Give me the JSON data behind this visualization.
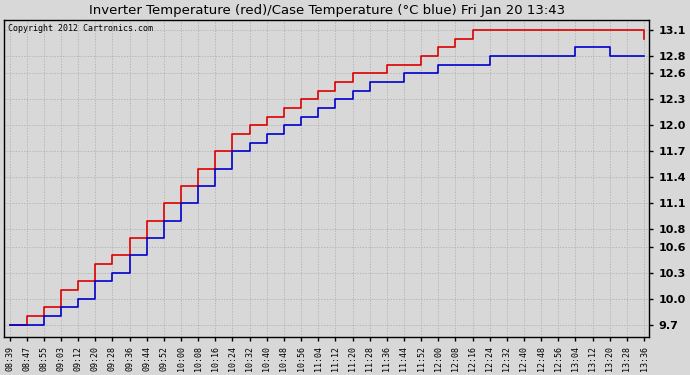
{
  "title": "Inverter Temperature (red)/Case Temperature (°C blue) Fri Jan 20 13:43",
  "copyright": "Copyright 2012 Cartronics.com",
  "background_color": "#d8d8d8",
  "plot_bg_color": "#d8d8d8",
  "red_color": "#dd0000",
  "blue_color": "#0000cc",
  "grid_color": "#aaaaaa",
  "yticks": [
    9.7,
    10.0,
    10.3,
    10.6,
    10.8,
    11.1,
    11.4,
    11.7,
    12.0,
    12.3,
    12.6,
    12.8,
    13.1
  ],
  "ymin": 9.56,
  "ymax": 13.22,
  "xtick_labels": [
    "08:39",
    "08:47",
    "08:55",
    "09:03",
    "09:12",
    "09:20",
    "09:28",
    "09:36",
    "09:44",
    "09:52",
    "10:00",
    "10:08",
    "10:16",
    "10:24",
    "10:32",
    "10:40",
    "10:48",
    "10:56",
    "11:04",
    "11:12",
    "11:20",
    "11:28",
    "11:36",
    "11:44",
    "11:52",
    "12:00",
    "12:08",
    "12:16",
    "12:24",
    "12:32",
    "12:40",
    "12:48",
    "12:56",
    "13:04",
    "13:12",
    "13:20",
    "13:28",
    "13:36"
  ],
  "red_y": [
    9.7,
    9.8,
    9.9,
    10.1,
    10.2,
    10.4,
    10.5,
    10.7,
    10.9,
    11.1,
    11.3,
    11.5,
    11.7,
    11.9,
    12.0,
    12.1,
    12.2,
    12.3,
    12.4,
    12.5,
    12.6,
    12.6,
    12.7,
    12.7,
    12.8,
    12.9,
    13.0,
    13.1,
    13.1,
    13.1,
    13.1,
    13.1,
    13.1,
    13.1,
    13.1,
    13.1,
    13.1,
    13.0
  ],
  "blue_y": [
    9.7,
    9.7,
    9.8,
    9.9,
    10.0,
    10.2,
    10.3,
    10.5,
    10.7,
    10.9,
    11.1,
    11.3,
    11.5,
    11.7,
    11.8,
    11.9,
    12.0,
    12.1,
    12.2,
    12.3,
    12.4,
    12.5,
    12.5,
    12.6,
    12.6,
    12.7,
    12.7,
    12.7,
    12.8,
    12.8,
    12.8,
    12.8,
    12.8,
    12.9,
    12.9,
    12.8,
    12.8,
    12.8
  ]
}
